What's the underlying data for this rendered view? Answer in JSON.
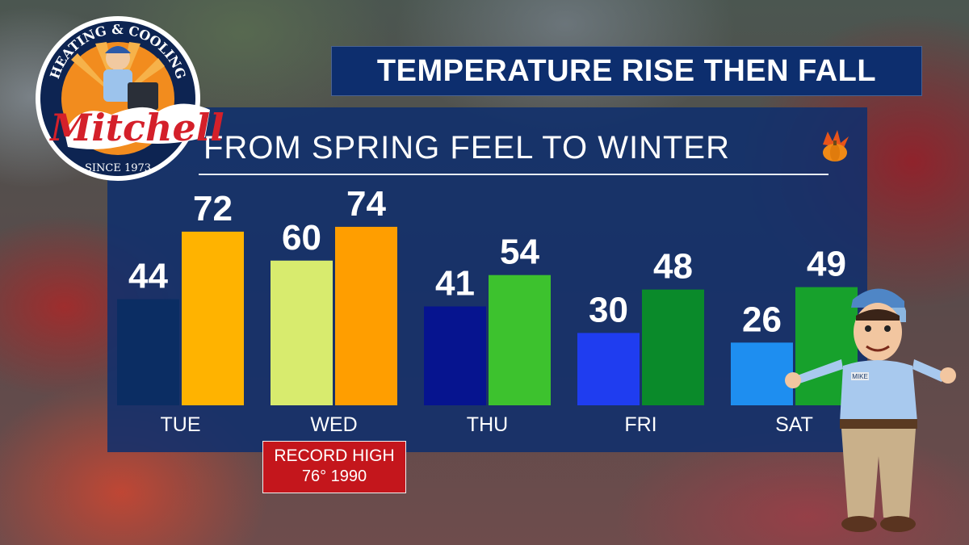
{
  "title": "TEMPERATURE RISE THEN FALL",
  "subtitle": "FROM SPRING FEEL TO WINTER",
  "record": {
    "line1": "RECORD HIGH",
    "line2": "76° 1990"
  },
  "logo": {
    "top_text": "HEATING & COOLING",
    "brand": "Mitchell",
    "since": "SINCE 1973"
  },
  "mascot": {
    "badge": "MIKE"
  },
  "icons": {
    "seasonal": "pumpkin-leaves-icon"
  },
  "chart_data": {
    "type": "bar",
    "categories": [
      "TUE",
      "WED",
      "THU",
      "FRI",
      "SAT"
    ],
    "series": [
      {
        "values": [
          44,
          60,
          41,
          30,
          26
        ],
        "colors": [
          "#0b2d63",
          "#d8eb6e",
          "#06148f",
          "#1f3df0",
          "#1e8ef0"
        ]
      },
      {
        "values": [
          72,
          74,
          54,
          48,
          49
        ],
        "colors": [
          "#ffb300",
          "#ff9e00",
          "#3dc22e",
          "#0a8a2a",
          "#17a12c"
        ]
      }
    ],
    "ylim": [
      0,
      80
    ]
  }
}
